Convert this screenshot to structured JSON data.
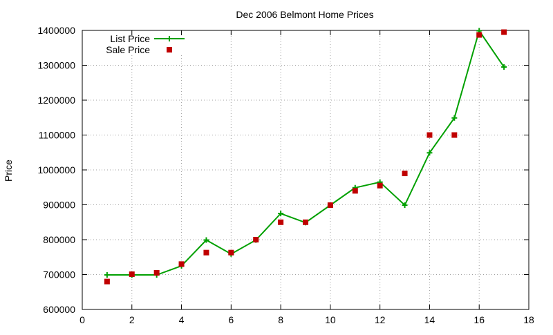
{
  "chart_data": {
    "type": "line",
    "title": "Dec 2006 Belmont Home Prices",
    "xlabel": "",
    "ylabel": "Price",
    "xlim": [
      0,
      18
    ],
    "ylim": [
      600000,
      1400000
    ],
    "xticks": [
      0,
      2,
      4,
      6,
      8,
      10,
      12,
      14,
      16,
      18
    ],
    "yticks": [
      600000,
      700000,
      800000,
      900000,
      1000000,
      1100000,
      1200000,
      1300000,
      1400000
    ],
    "grid": true,
    "legend_position": "top-left",
    "series": [
      {
        "name": "List Price",
        "mark": "line+plus",
        "color": "#00a000",
        "x": [
          1,
          2,
          3,
          4,
          5,
          6,
          7,
          8,
          9,
          10,
          11,
          12,
          13,
          14,
          15,
          16,
          17
        ],
        "y": [
          699000,
          699000,
          699000,
          725000,
          799000,
          759000,
          799000,
          875000,
          849000,
          899000,
          949000,
          965000,
          899000,
          1049000,
          1149000,
          1399000,
          1295000
        ]
      },
      {
        "name": "Sale Price",
        "mark": "square",
        "color": "#c00000",
        "x": [
          1,
          2,
          3,
          4,
          5,
          6,
          7,
          8,
          9,
          10,
          11,
          12,
          13,
          14,
          15,
          16,
          17
        ],
        "y": [
          680000,
          701000,
          705000,
          730000,
          763000,
          763000,
          800000,
          850000,
          850000,
          899000,
          940000,
          955000,
          990000,
          1100000,
          1100000,
          1387000,
          1395000
        ]
      }
    ]
  }
}
